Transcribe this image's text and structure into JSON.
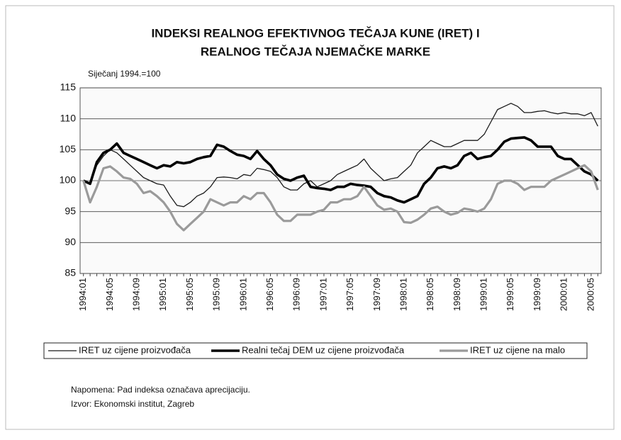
{
  "chart_data": {
    "type": "line",
    "title": [
      "INDEKSI REALNOG EFEKTIVNOG TEČAJA KUNE (IRET) I",
      "REALNOG TEČAJA NJEMAČKE MARKE"
    ],
    "subtitle": "Siječanj 1994.=100",
    "categories": [
      "1994:01",
      null,
      null,
      null,
      "1994:05",
      null,
      null,
      null,
      "1994:09",
      null,
      null,
      null,
      "1995:01",
      null,
      null,
      null,
      "1995:05",
      null,
      null,
      null,
      "1995:09",
      null,
      null,
      null,
      "1996:01",
      null,
      null,
      null,
      "1996:05",
      null,
      null,
      null,
      "1996:09",
      null,
      null,
      null,
      "1997:01",
      null,
      null,
      null,
      "1997:05",
      null,
      null,
      null,
      "1997:09",
      null,
      null,
      null,
      "1998:01",
      null,
      null,
      null,
      "1998:05",
      null,
      null,
      null,
      "1998:09",
      null,
      null,
      null,
      "1999:01",
      null,
      null,
      null,
      "1999:05",
      null,
      null,
      null,
      "1999:09",
      null,
      null,
      null,
      "2000:01",
      null,
      null,
      null,
      "2000:05",
      null
    ],
    "series": [
      {
        "name": "IRET uz cijene proizvođača",
        "color": "#1a1a1a",
        "values": [
          100,
          99.5,
          102.5,
          104,
          105,
          104.5,
          103.5,
          102.5,
          101.5,
          100.5,
          100,
          99.5,
          99.3,
          97.5,
          96,
          95.8,
          96.5,
          97.5,
          98,
          99,
          100.5,
          100.6,
          100.5,
          100.3,
          101,
          100.8,
          102,
          101.8,
          101.5,
          100.5,
          99,
          98.5,
          98.5,
          99.5,
          100,
          99,
          99.5,
          100,
          101,
          101.5,
          102,
          102.5,
          103.5,
          102,
          101,
          100,
          100.3,
          100.5,
          101.5,
          102.5,
          104.5,
          105.5,
          106.5,
          106,
          105.5,
          105.5,
          106,
          106.5,
          106.5,
          106.5,
          107.5,
          109.5,
          111.5,
          112,
          112.5,
          112,
          111,
          111,
          111.2,
          111.3,
          111,
          110.8,
          111,
          110.8,
          110.8,
          110.5,
          111,
          108.8
        ]
      },
      {
        "name": "Realni tečaj DEM uz cijene proizvođača",
        "color": "#000000",
        "values": [
          100,
          99.5,
          103,
          104.5,
          105,
          106,
          104.5,
          104,
          103.5,
          103,
          102.5,
          102,
          102.5,
          102.3,
          103,
          102.8,
          103,
          103.5,
          103.8,
          104,
          105.8,
          105.5,
          104.8,
          104.2,
          104,
          103.5,
          104.8,
          103.5,
          102.5,
          101,
          100.3,
          100,
          100.5,
          100.8,
          99,
          98.8,
          98.7,
          98.5,
          99,
          99,
          99.5,
          99.3,
          99.2,
          99,
          98,
          97.5,
          97.3,
          96.8,
          96.5,
          97,
          97.5,
          99.5,
          100.5,
          102,
          102.3,
          102,
          102.5,
          104,
          104.5,
          103.5,
          103.8,
          104,
          105,
          106.3,
          106.8,
          106.9,
          107,
          106.5,
          105.5,
          105.5,
          105.5,
          104,
          103.5,
          103.5,
          102.5,
          101.5,
          101,
          100
        ]
      },
      {
        "name": "IRET uz cijene na malo",
        "color": "#9a9a9a",
        "values": [
          100,
          96.5,
          99,
          102,
          102.3,
          101.5,
          100.5,
          100.3,
          99.5,
          98,
          98.3,
          97.5,
          96.5,
          95,
          93,
          92,
          93,
          94,
          95,
          97,
          96.5,
          96,
          96.5,
          96.5,
          97.5,
          97,
          98,
          98,
          96.5,
          94.5,
          93.5,
          93.5,
          94.5,
          94.5,
          94.5,
          95,
          95.3,
          96.5,
          96.5,
          97,
          97,
          97.5,
          99,
          97.5,
          96,
          95.3,
          95.5,
          95,
          93.3,
          93.2,
          93.7,
          94.5,
          95.5,
          95.8,
          95,
          94.5,
          94.8,
          95.5,
          95.3,
          95,
          95.5,
          97,
          99.5,
          100,
          100,
          99.5,
          98.5,
          99,
          99,
          99,
          100,
          100.5,
          101,
          101.5,
          102,
          102.5,
          101.5,
          98.5
        ]
      }
    ],
    "ylim": [
      85,
      115
    ],
    "yticks": [
      85,
      90,
      95,
      100,
      105,
      110,
      115
    ],
    "grid": true,
    "legend": "bottom",
    "notes": [
      "Napomena: Pad indeksa označava aprecijaciju.",
      "Izvor: Ekonomski institut, Zagreb"
    ]
  }
}
